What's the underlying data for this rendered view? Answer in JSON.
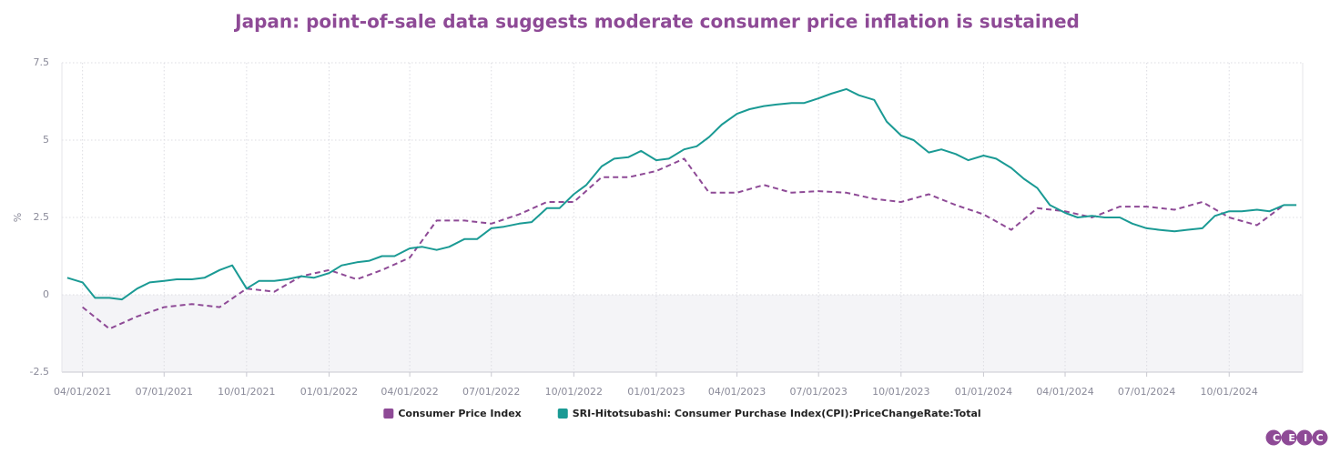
{
  "chart_data": {
    "type": "line",
    "title": "Japan: point-of-sale data suggests moderate consumer price inflation is sustained",
    "y_label": "%",
    "brand": "CEIC",
    "xlim": [
      "03/09/2021",
      "12/22/2024"
    ],
    "xticks": [
      "04/01/2021",
      "07/01/2021",
      "10/01/2021",
      "01/01/2022",
      "04/01/2022",
      "07/01/2022",
      "10/01/2022",
      "01/01/2023",
      "04/01/2023",
      "07/01/2023",
      "10/01/2023",
      "01/01/2024",
      "04/01/2024",
      "07/01/2024",
      "10/01/2024"
    ],
    "ylim": [
      -2.5,
      7.5
    ],
    "yticks": [
      -2.5,
      0,
      2.5,
      5,
      7.5
    ],
    "grid": true,
    "legend": "bottom",
    "series": [
      {
        "name": "Consumer Price Index",
        "color": "#8e4a96",
        "dash": true,
        "x": [
          "04/01/2021",
          "05/01/2021",
          "06/01/2021",
          "07/01/2021",
          "08/01/2021",
          "09/01/2021",
          "10/01/2021",
          "11/01/2021",
          "12/01/2021",
          "01/01/2022",
          "02/01/2022",
          "03/01/2022",
          "04/01/2022",
          "05/01/2022",
          "06/01/2022",
          "07/01/2022",
          "08/01/2022",
          "09/01/2022",
          "10/01/2022",
          "11/01/2022",
          "12/01/2022",
          "01/01/2023",
          "02/01/2023",
          "03/01/2023",
          "04/01/2023",
          "05/01/2023",
          "06/01/2023",
          "07/01/2023",
          "08/01/2023",
          "09/01/2023",
          "10/01/2023",
          "11/01/2023",
          "12/01/2023",
          "01/01/2024",
          "02/01/2024",
          "03/01/2024",
          "04/01/2024",
          "05/01/2024",
          "06/01/2024",
          "07/01/2024",
          "08/01/2024",
          "09/01/2024",
          "10/01/2024",
          "11/01/2024",
          "12/01/2024"
        ],
        "values": [
          -0.4,
          -1.1,
          -0.7,
          -0.4,
          -0.3,
          -0.4,
          0.2,
          0.1,
          0.6,
          0.8,
          0.5,
          0.8,
          1.2,
          2.4,
          2.4,
          2.3,
          2.6,
          3.0,
          3.0,
          3.8,
          3.8,
          4.0,
          4.4,
          3.3,
          3.3,
          3.55,
          3.3,
          3.35,
          3.3,
          3.1,
          3.0,
          3.25,
          2.9,
          2.6,
          2.1,
          2.8,
          2.7,
          2.5,
          2.85,
          2.85,
          2.75,
          3.0,
          2.5,
          2.25,
          2.9
        ]
      },
      {
        "name": "SRI-Hitotsubashi: Consumer Purchase Index(CPI):PriceChangeRate:Total",
        "color": "#1a9a94",
        "dash": false,
        "x": [
          "03/15/2021",
          "04/01/2021",
          "04/15/2021",
          "05/01/2021",
          "05/15/2021",
          "06/01/2021",
          "06/15/2021",
          "07/01/2021",
          "07/15/2021",
          "08/01/2021",
          "08/15/2021",
          "09/01/2021",
          "09/15/2021",
          "10/01/2021",
          "10/15/2021",
          "11/01/2021",
          "11/15/2021",
          "12/01/2021",
          "12/15/2021",
          "01/01/2022",
          "01/15/2022",
          "02/01/2022",
          "02/15/2022",
          "03/01/2022",
          "03/15/2022",
          "04/01/2022",
          "04/15/2022",
          "05/01/2022",
          "05/15/2022",
          "06/01/2022",
          "06/15/2022",
          "07/01/2022",
          "07/15/2022",
          "08/01/2022",
          "08/15/2022",
          "09/01/2022",
          "09/15/2022",
          "10/01/2022",
          "10/15/2022",
          "11/01/2022",
          "11/15/2022",
          "12/01/2022",
          "12/15/2022",
          "01/01/2023",
          "01/15/2023",
          "02/01/2023",
          "02/15/2023",
          "03/01/2023",
          "03/15/2023",
          "04/01/2023",
          "04/15/2023",
          "05/01/2023",
          "05/15/2023",
          "06/01/2023",
          "06/15/2023",
          "07/01/2023",
          "07/15/2023",
          "08/01/2023",
          "08/15/2023",
          "09/01/2023",
          "09/15/2023",
          "10/01/2023",
          "10/15/2023",
          "11/01/2023",
          "11/15/2023",
          "12/01/2023",
          "12/15/2023",
          "01/01/2024",
          "01/15/2024",
          "02/01/2024",
          "02/15/2024",
          "03/01/2024",
          "03/15/2024",
          "04/01/2024",
          "04/15/2024",
          "05/01/2024",
          "05/15/2024",
          "06/01/2024",
          "06/15/2024",
          "07/01/2024",
          "07/15/2024",
          "08/01/2024",
          "08/15/2024",
          "09/01/2024",
          "09/15/2024",
          "10/01/2024",
          "10/15/2024",
          "11/01/2024",
          "11/15/2024",
          "12/01/2024",
          "12/15/2024"
        ],
        "values": [
          0.55,
          0.4,
          -0.1,
          -0.1,
          -0.15,
          0.2,
          0.4,
          0.45,
          0.5,
          0.5,
          0.55,
          0.8,
          0.95,
          0.2,
          0.45,
          0.45,
          0.5,
          0.6,
          0.55,
          0.7,
          0.95,
          1.05,
          1.1,
          1.25,
          1.25,
          1.5,
          1.55,
          1.45,
          1.55,
          1.8,
          1.8,
          2.15,
          2.2,
          2.3,
          2.35,
          2.8,
          2.8,
          3.25,
          3.55,
          4.15,
          4.4,
          4.45,
          4.65,
          4.35,
          4.4,
          4.7,
          4.8,
          5.1,
          5.5,
          5.85,
          6.0,
          6.1,
          6.15,
          6.2,
          6.2,
          6.35,
          6.5,
          6.65,
          6.45,
          6.3,
          5.6,
          5.15,
          5.0,
          4.6,
          4.7,
          4.55,
          4.35,
          4.5,
          4.4,
          4.1,
          3.75,
          3.45,
          2.9,
          2.65,
          2.5,
          2.55,
          2.5,
          2.5,
          2.3,
          2.15,
          2.1,
          2.05,
          2.1,
          2.15,
          2.55,
          2.7,
          2.7,
          2.75,
          2.7,
          2.9,
          2.9
        ]
      }
    ]
  }
}
